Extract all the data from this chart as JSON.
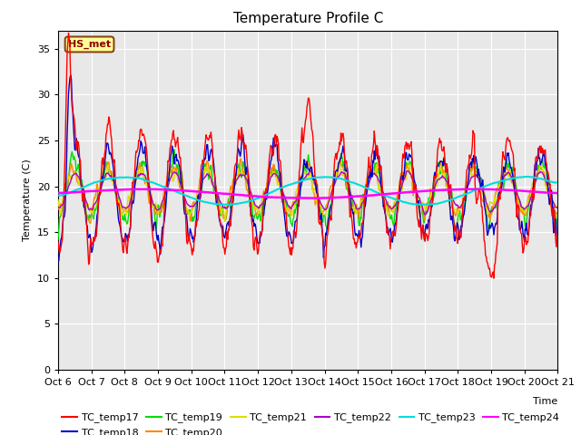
{
  "title": "Temperature Profile C",
  "xlabel": "Time",
  "ylabel": "Temperature (C)",
  "ylim": [
    0,
    37
  ],
  "yticks": [
    0,
    5,
    10,
    15,
    20,
    25,
    30,
    35
  ],
  "x_labels": [
    "Oct 6",
    "Oct 7",
    "Oct 8",
    "Oct 9",
    "Oct 10",
    "Oct 11",
    "Oct 12",
    "Oct 13",
    "Oct 14",
    "Oct 15",
    "Oct 16",
    "Oct 17",
    "Oct 18",
    "Oct 19",
    "Oct 20",
    "Oct 21"
  ],
  "annotation_text": "HS_met",
  "series_colors": {
    "TC_temp17": "#ff0000",
    "TC_temp18": "#0000cc",
    "TC_temp19": "#00dd00",
    "TC_temp20": "#ff8800",
    "TC_temp21": "#dddd00",
    "TC_temp22": "#aa00cc",
    "TC_temp23": "#00dddd",
    "TC_temp24": "#ff00ff"
  },
  "bg_color": "#e8e8e8",
  "title_fontsize": 11,
  "axis_fontsize": 8,
  "legend_fontsize": 8,
  "n_days": 15,
  "n_per_day": 48
}
